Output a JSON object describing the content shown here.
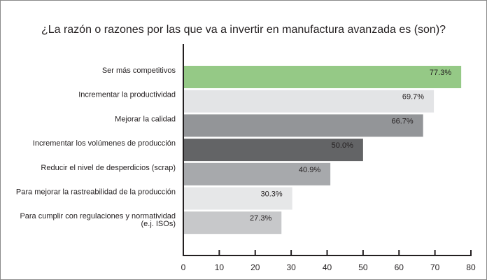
{
  "chart_data": {
    "type": "bar",
    "orientation": "horizontal",
    "title": "¿La razón o razones por las que va a invertir en manufactura avanzada es (son)?",
    "categories": [
      [
        "Ser más competitivos"
      ],
      [
        "Incrementar la productividad"
      ],
      [
        "Mejorar la calidad"
      ],
      [
        "Incrementar los volúmenes de producción"
      ],
      [
        "Reducir el nivel de desperdicios (scrap)"
      ],
      [
        "Para mejorar la rastreabilidad de la producción"
      ],
      [
        "Para cumplir con regulaciones y normatividad",
        "(e.j. ISOs)"
      ]
    ],
    "values": [
      77.3,
      69.7,
      66.7,
      50.0,
      40.9,
      30.3,
      27.3
    ],
    "data_labels": [
      "77.3%",
      "69.7%",
      "66.7%",
      "50.0%",
      "40.9%",
      "30.3%",
      "27.3%"
    ],
    "colors": [
      "#95c986",
      "#e3e4e6",
      "#939598",
      "#636466",
      "#a7a9ac",
      "#e6e7e8",
      "#c7c8ca"
    ],
    "xlim": [
      0,
      80
    ],
    "xticks": [
      "0",
      "10",
      "20",
      "30",
      "40",
      "50",
      "60",
      "70",
      "80"
    ],
    "grid": false,
    "legend": "none"
  }
}
